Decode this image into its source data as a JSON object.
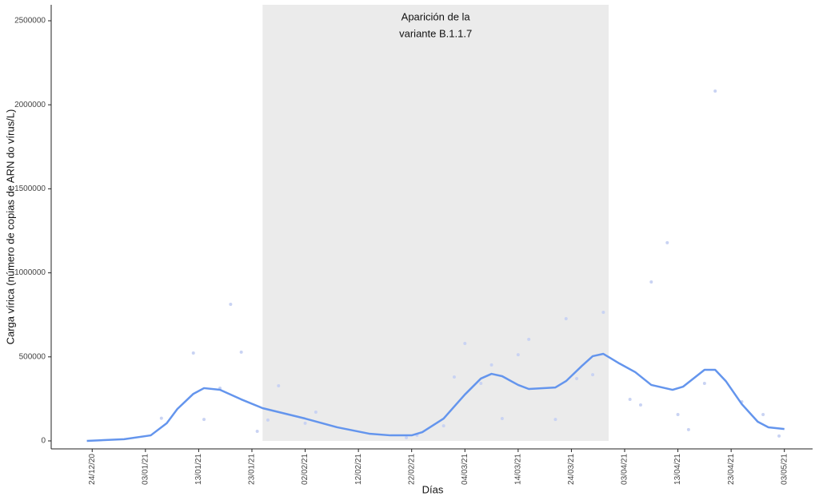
{
  "chart_data": {
    "type": "line",
    "x_label": "Días",
    "y_label": "Carga vírica (número de copias de ARN do vírus/L)",
    "shaded_region": {
      "x": [
        "2021-01-25",
        "2021-03-31"
      ],
      "color": "#ebebeb",
      "label": [
        "Aparición de la",
        "variante B.1.1.7"
      ]
    },
    "xlim": [
      "2020-12-16",
      "2021-05-08"
    ],
    "xticks": [
      {
        "value": "2020-12-24",
        "label": "24/12/20"
      },
      {
        "value": "2021-01-03",
        "label": "03/01/21"
      },
      {
        "value": "2021-01-13",
        "label": "13/01/21"
      },
      {
        "value": "2021-01-23",
        "label": "23/01/21"
      },
      {
        "value": "2021-02-02",
        "label": "02/02/21"
      },
      {
        "value": "2021-02-12",
        "label": "12/02/21"
      },
      {
        "value": "2021-02-22",
        "label": "22/02/21"
      },
      {
        "value": "2021-03-04",
        "label": "04/03/21"
      },
      {
        "value": "2021-03-14",
        "label": "14/03/21"
      },
      {
        "value": "2021-03-24",
        "label": "24/03/21"
      },
      {
        "value": "2021-04-03",
        "label": "03/04/21"
      },
      {
        "value": "2021-04-13",
        "label": "13/04/21"
      },
      {
        "value": "2021-04-23",
        "label": "23/04/21"
      },
      {
        "value": "2021-05-03",
        "label": "03/05/21"
      }
    ],
    "ylim": [
      -47500,
      2595000
    ],
    "yticks": [
      0,
      500000,
      1000000,
      1500000,
      2000000,
      2500000
    ],
    "series": [
      {
        "type": "scatter",
        "color": "#c9d3f3",
        "x": [
          "2021-01-06",
          "2021-01-12",
          "2021-01-14",
          "2021-01-17",
          "2021-01-19",
          "2021-01-21",
          "2021-01-24",
          "2021-01-26",
          "2021-01-28",
          "2021-02-02",
          "2021-02-04",
          "2021-02-21",
          "2021-02-23",
          "2021-02-28",
          "2021-03-02",
          "2021-03-04",
          "2021-03-07",
          "2021-03-09",
          "2021-03-11",
          "2021-03-14",
          "2021-03-16",
          "2021-03-21",
          "2021-03-23",
          "2021-03-25",
          "2021-03-28",
          "2021-03-30",
          "2021-04-04",
          "2021-04-06",
          "2021-04-08",
          "2021-04-11",
          "2021-04-13",
          "2021-04-15",
          "2021-04-18",
          "2021-04-20",
          "2021-04-25",
          "2021-04-29",
          "2021-05-02"
        ],
        "values": [
          135000,
          523000,
          128000,
          314000,
          813000,
          528000,
          57000,
          124000,
          328000,
          105000,
          171000,
          19000,
          33000,
          90000,
          380000,
          580000,
          342000,
          452000,
          133000,
          513000,
          604000,
          128000,
          727000,
          371000,
          394000,
          765000,
          247000,
          214000,
          946000,
          1179000,
          157000,
          67000,
          342000,
          2082000,
          233000,
          157000,
          29000
        ]
      },
      {
        "type": "line",
        "color": "#6495ed",
        "x": [
          "2020-12-23",
          "2020-12-30",
          "2021-01-04",
          "2021-01-07",
          "2021-01-09",
          "2021-01-12",
          "2021-01-14",
          "2021-01-17",
          "2021-01-21",
          "2021-01-25",
          "2021-02-02",
          "2021-02-08",
          "2021-02-14",
          "2021-02-18",
          "2021-02-22",
          "2021-02-24",
          "2021-02-28",
          "2021-03-04",
          "2021-03-07",
          "2021-03-09",
          "2021-03-11",
          "2021-03-14",
          "2021-03-16",
          "2021-03-21",
          "2021-03-23",
          "2021-03-26",
          "2021-03-28",
          "2021-03-30",
          "2021-04-02",
          "2021-04-05",
          "2021-04-08",
          "2021-04-12",
          "2021-04-14",
          "2021-04-18",
          "2021-04-20",
          "2021-04-22",
          "2021-04-25",
          "2021-04-28",
          "2021-04-30",
          "2021-05-03"
        ],
        "values": [
          0,
          10000,
          33000,
          105000,
          190000,
          280000,
          314000,
          304000,
          247000,
          195000,
          133000,
          81000,
          43000,
          33000,
          33000,
          52000,
          133000,
          276000,
          371000,
          399000,
          385000,
          333000,
          309000,
          318000,
          356000,
          447000,
          504000,
          518000,
          461000,
          409000,
          333000,
          304000,
          323000,
          423000,
          423000,
          356000,
          219000,
          114000,
          81000,
          71000
        ]
      }
    ]
  }
}
